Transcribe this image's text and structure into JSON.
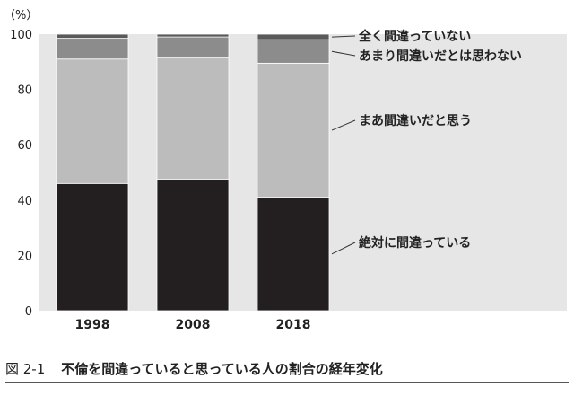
{
  "caption": {
    "figure_number": "図 2-1",
    "title": "不倫を間違っていると思っている人の割合の経年変化"
  },
  "chart_data": {
    "type": "bar",
    "stacked": true,
    "unit_label": "（%）",
    "categories": [
      "1998",
      "2008",
      "2018"
    ],
    "ylim": [
      0,
      100
    ],
    "yticks": [
      0,
      20,
      40,
      60,
      80,
      100
    ],
    "grid": false,
    "legend_placement": "right",
    "series": [
      {
        "name": "絶対に間違っている",
        "values": [
          46,
          47.5,
          41
        ],
        "color": "#231f20"
      },
      {
        "name": "まあ間違いだと思う",
        "values": [
          45,
          44,
          48.5
        ],
        "color": "#bcbcbc"
      },
      {
        "name": "あまり間違いだとは思わない",
        "values": [
          7.5,
          7.5,
          8.5
        ],
        "color": "#8c8c8c"
      },
      {
        "name": "全く間違っていない",
        "values": [
          1.5,
          1,
          2
        ],
        "color": "#5a5a5a"
      }
    ],
    "plot_background": "#e6e6e6"
  }
}
